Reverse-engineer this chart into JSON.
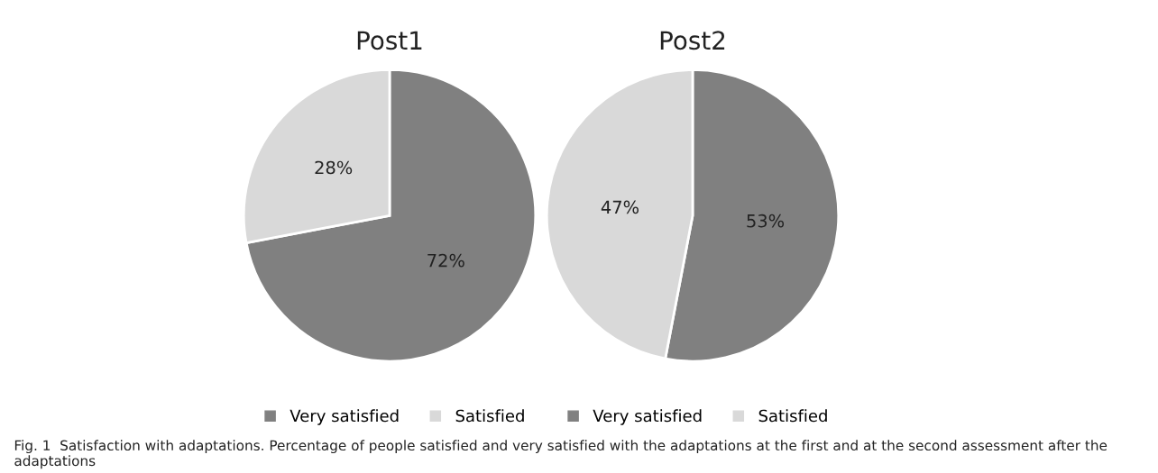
{
  "chart_data": [
    {
      "type": "pie",
      "title": "Post1",
      "categories": [
        "Very satisfied",
        "Satisfied"
      ],
      "values": [
        72,
        28
      ],
      "colors": [
        "#808080",
        "#d9d9d9"
      ],
      "value_labels": [
        "72%",
        "28%"
      ],
      "legend": "bottom",
      "annotations": [
        "Fig. 1  Satisfaction with adaptations. Percentage of people satisfied and very satisfied with the adaptations at the first and at the second assessment after the adaptations"
      ]
    },
    {
      "type": "pie",
      "title": "Post2",
      "categories": [
        "Very satisfied",
        "Satisfied"
      ],
      "values": [
        53,
        47
      ],
      "colors": [
        "#808080",
        "#d9d9d9"
      ],
      "value_labels": [
        "53%",
        "47%"
      ],
      "legend": "bottom"
    }
  ]
}
